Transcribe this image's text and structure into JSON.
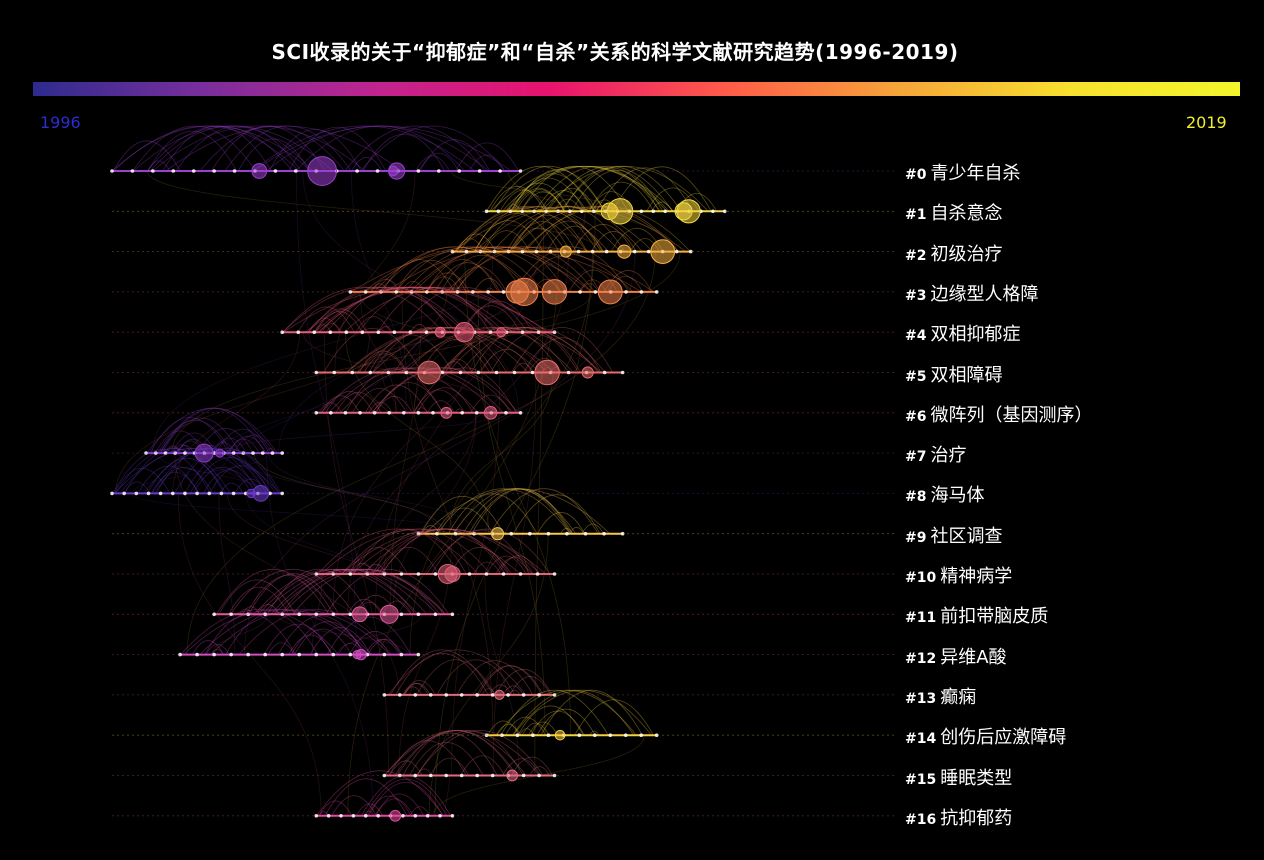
{
  "title": "SCI收录的关于“抑郁症”和“自杀”关系的科学文献研究趋势(1996-2019)",
  "colorbar": {
    "start_year": "1996",
    "end_year": "2019"
  },
  "colors": {
    "background": "#000000",
    "year_start": "#2c2cd0",
    "year_end": "#f0f030"
  },
  "chart_data": {
    "type": "timeline",
    "x_range": [
      1996,
      2019
    ],
    "clusters": [
      {
        "id": "#0",
        "label": "青少年自杀",
        "start": 1996,
        "end": 2008,
        "color": "#9a3fd0",
        "density": 5
      },
      {
        "id": "#1",
        "label": "自杀意念",
        "start": 2007,
        "end": 2014,
        "color": "#f2d640",
        "density": 5
      },
      {
        "id": "#2",
        "label": "初级治疗",
        "start": 2006,
        "end": 2013,
        "color": "#f5b040",
        "density": 4
      },
      {
        "id": "#3",
        "label": "边缘型人格障",
        "start": 2003,
        "end": 2012,
        "color": "#f08048",
        "density": 5
      },
      {
        "id": "#4",
        "label": "双相抑郁症",
        "start": 2001,
        "end": 2009,
        "color": "#e85a7a",
        "density": 4
      },
      {
        "id": "#5",
        "label": "双相障碍",
        "start": 2002,
        "end": 2011,
        "color": "#e86a6a",
        "density": 4
      },
      {
        "id": "#6",
        "label": "微阵列（基因测序）",
        "start": 2002,
        "end": 2008,
        "color": "#e05c82",
        "density": 3
      },
      {
        "id": "#7",
        "label": "治疗",
        "start": 1997,
        "end": 2001,
        "color": "#8c3cc8",
        "density": 3
      },
      {
        "id": "#8",
        "label": "海马体",
        "start": 1996,
        "end": 2001,
        "color": "#6a3ac8",
        "density": 3
      },
      {
        "id": "#9",
        "label": "社区调查",
        "start": 2005,
        "end": 2011,
        "color": "#f6c84c",
        "density": 2
      },
      {
        "id": "#10",
        "label": "精神病学",
        "start": 2002,
        "end": 2009,
        "color": "#e06278",
        "density": 3
      },
      {
        "id": "#11",
        "label": "前扣带脑皮质",
        "start": 1999,
        "end": 2006,
        "color": "#e05a98",
        "density": 3
      },
      {
        "id": "#12",
        "label": "异维A酸",
        "start": 1998,
        "end": 2005,
        "color": "#d04cc0",
        "density": 3
      },
      {
        "id": "#13",
        "label": "癫痫",
        "start": 2004,
        "end": 2009,
        "color": "#e06a7a",
        "density": 2
      },
      {
        "id": "#14",
        "label": "创伤后应激障碍",
        "start": 2007,
        "end": 2012,
        "color": "#f4d040",
        "density": 2
      },
      {
        "id": "#15",
        "label": "睡眠类型",
        "start": 2004,
        "end": 2009,
        "color": "#e06a80",
        "density": 2
      },
      {
        "id": "#16",
        "label": "抗抑郁药",
        "start": 2002,
        "end": 2006,
        "color": "#e04aa0",
        "density": 2
      }
    ]
  }
}
